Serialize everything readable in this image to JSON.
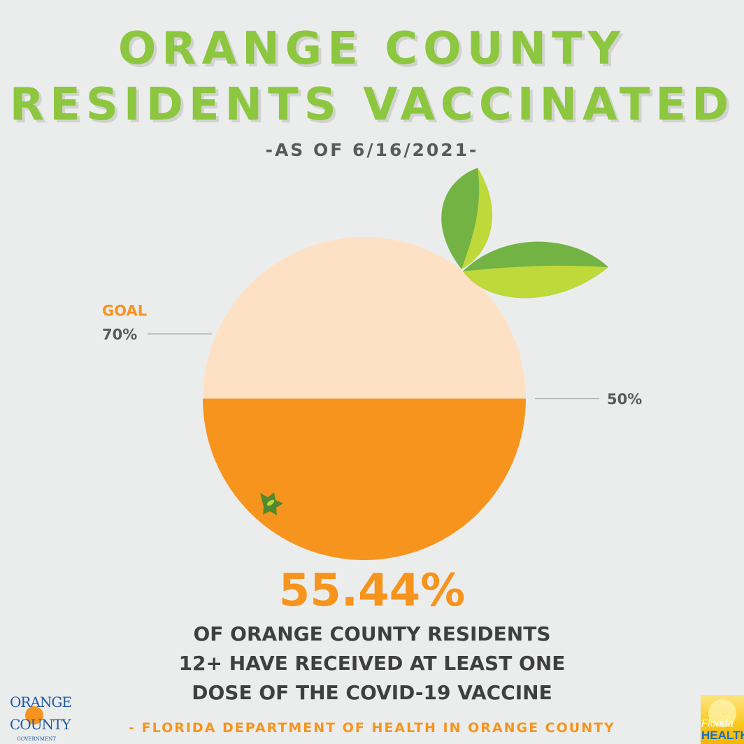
{
  "header": {
    "title_line1": "ORANGE COUNTY",
    "title_line2": "RESIDENTS VACCINATED",
    "as_of": "-AS OF 6/16/2021-"
  },
  "chart_data": {
    "type": "gauge",
    "title": "ORANGE COUNTY RESIDENTS VACCINATED",
    "value": 55.44,
    "value_label": "55.44%",
    "unit": "%",
    "range": [
      0,
      100
    ],
    "markers": [
      {
        "label": "50%",
        "value": 50,
        "side": "right"
      },
      {
        "label": "70%",
        "value": 70,
        "side": "left",
        "caption": "GOAL"
      }
    ],
    "colors": {
      "filled": "#f7941d",
      "unfilled": "#fee1c4",
      "leaf_dark": "#72b344",
      "leaf_light": "#bfd83a",
      "goal": "#f7941d",
      "marker_text": "#5a5a5a"
    }
  },
  "description": {
    "line1": "OF ORANGE COUNTY RESIDENTS",
    "line2": "12+ HAVE RECEIVED AT LEAST ONE",
    "line3": "DOSE OF THE COVID-19 VACCINE"
  },
  "source": "- FLORIDA DEPARTMENT OF HEALTH IN ORANGE COUNTY",
  "logos": {
    "left": {
      "line1": "ORANGE",
      "line2": "COUNTY",
      "line3": "GOVERNMENT"
    },
    "right": {
      "line1": "Florida",
      "line2": "HEALTH"
    }
  }
}
